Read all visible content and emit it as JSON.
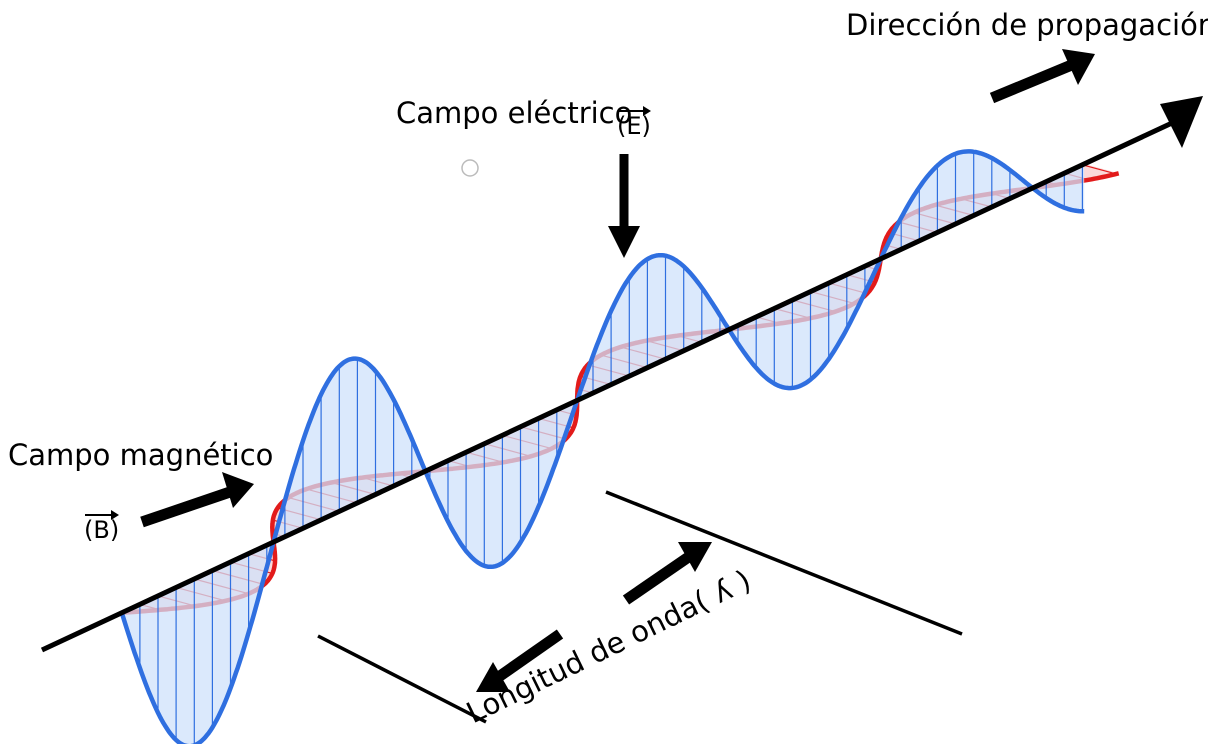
{
  "labels": {
    "direction": "Dirección de propagación",
    "electric_field": "Campo eléctrico",
    "electric_symbol": "(E)",
    "magnetic_field": "Campo magnético",
    "magnetic_symbol": "(B)",
    "wavelength": "Longitud de onda( ʎ )"
  },
  "colors": {
    "electric_wave": "#2f6fe0",
    "electric_fill": "#cfe2fb",
    "magnetic_wave": "#e21b1b",
    "magnetic_fill": "#f8cccc",
    "arrows": "#000000"
  }
}
